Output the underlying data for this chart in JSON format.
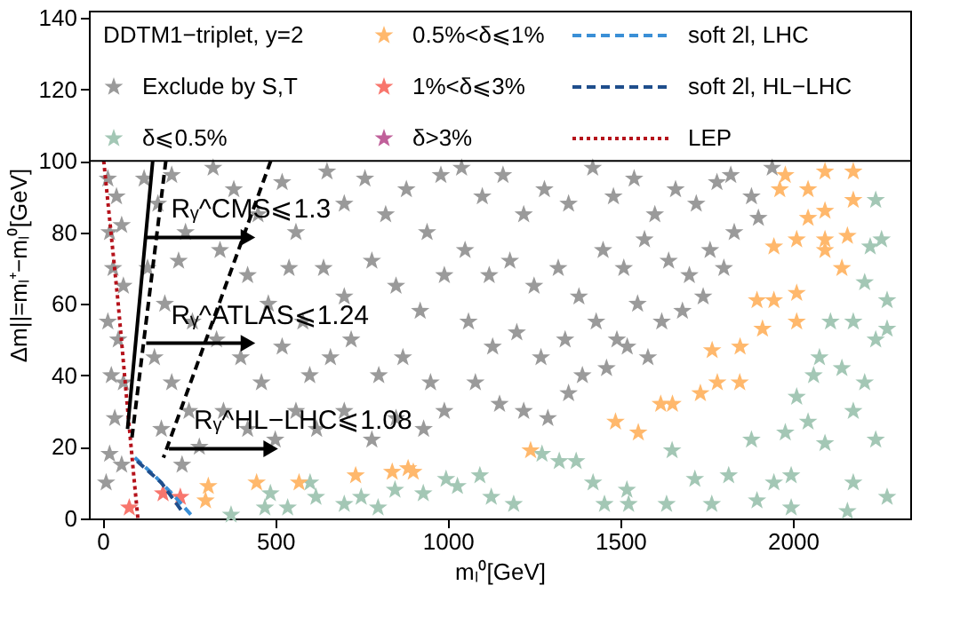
{
  "chart_data": {
    "type": "scatter",
    "legend": "top",
    "ref_lines": [
      {
        "axis": "y",
        "value": 100,
        "color": "#000000"
      }
    ],
    "legend_title": "DDTM1−triplet, y=2",
    "grid": false,
    "xlabel": "mₗ⁰[GeV]",
    "ylabel": "Δm||=mₗ⁺−mₗ⁰[GeV]",
    "xlim": [
      -40,
      2340
    ],
    "ylim": [
      0,
      142
    ],
    "xticks": [
      0,
      500,
      1000,
      1500,
      2000
    ],
    "yticks": [
      0,
      20,
      40,
      60,
      80,
      100,
      120,
      140
    ],
    "series": [
      {
        "name": "Exclude by S,T",
        "marker": "star",
        "color": "#9a9a9a",
        "x": [
          15,
          40,
          20,
          55,
          30,
          60,
          15,
          45,
          25,
          60,
          35,
          20,
          55,
          10,
          120,
          160,
          200,
          240,
          130,
          180,
          220,
          260,
          150,
          200,
          250,
          170,
          280,
          230,
          320,
          380,
          450,
          520,
          560,
          340,
          420,
          480,
          540,
          330,
          400,
          460,
          520,
          580,
          350,
          420,
          500,
          560,
          600,
          650,
          700,
          760,
          820,
          880,
          940,
          980,
          640,
          700,
          780,
          850,
          920,
          990,
          660,
          720,
          800,
          870,
          950,
          620,
          700,
          780,
          850,
          930,
          990,
          1040,
          1100,
          1160,
          1220,
          1280,
          1350,
          1050,
          1120,
          1180,
          1250,
          1320,
          1380,
          1060,
          1130,
          1200,
          1270,
          1340,
          1390,
          1080,
          1150,
          1220,
          1290,
          1350,
          1420,
          1480,
          1540,
          1600,
          1660,
          1720,
          1780,
          1450,
          1510,
          1570,
          1640,
          1700,
          1760,
          1430,
          1490,
          1550,
          1620,
          1680,
          1740,
          1460,
          1520,
          1580,
          1820,
          1880,
          1940,
          1830,
          1900,
          1800
        ],
        "values": [
          95,
          90,
          80,
          82,
          70,
          65,
          55,
          50,
          40,
          38,
          28,
          18,
          15,
          10,
          95,
          88,
          96,
          80,
          70,
          60,
          72,
          55,
          45,
          38,
          30,
          25,
          20,
          15,
          98,
          92,
          85,
          94,
          80,
          75,
          68,
          60,
          70,
          50,
          45,
          38,
          48,
          55,
          30,
          25,
          22,
          30,
          40,
          97,
          88,
          95,
          85,
          92,
          80,
          96,
          70,
          62,
          72,
          65,
          58,
          68,
          45,
          50,
          40,
          45,
          38,
          25,
          30,
          22,
          28,
          25,
          30,
          98,
          90,
          96,
          85,
          92,
          88,
          75,
          68,
          72,
          65,
          70,
          62,
          55,
          48,
          52,
          45,
          50,
          40,
          38,
          32,
          30,
          28,
          35,
          98,
          90,
          95,
          85,
          92,
          88,
          94,
          75,
          70,
          78,
          72,
          68,
          75,
          55,
          50,
          60,
          55,
          58,
          62,
          42,
          48,
          45,
          96,
          90,
          98,
          80,
          84,
          70
        ]
      },
      {
        "name": "δ⩽0.5%",
        "marker": "star",
        "color": "#a3c7b5",
        "x": [
          1093,
          1323,
          1372,
          1191,
          1421,
          1519,
          1650,
          1716,
          1765,
          1814,
          1880,
          1945,
          1995,
          2011,
          2044,
          2077,
          2109,
          2175,
          2240,
          2273,
          2224,
          2257,
          2240,
          2142,
          2208,
          2175,
          2240,
          2175,
          2273,
          2158,
          1995,
          1896,
          1634,
          1454,
          1273,
          1126,
          1028,
          2208,
          2273,
          2093,
          1978,
          2060,
          372,
          470,
          536,
          618,
          700,
          798,
          847,
          929,
          995,
          749,
          601,
          486,
          1524
        ],
        "values": [
          12,
          16,
          16,
          4,
          10,
          8,
          19,
          11,
          4,
          12,
          22,
          10,
          12,
          34,
          27,
          45,
          55,
          55,
          50,
          53,
          76,
          78,
          89,
          42,
          38,
          30,
          22,
          10,
          6,
          2,
          3,
          5,
          4,
          4,
          18,
          6,
          9,
          66,
          61,
          21,
          24,
          40,
          1,
          3,
          3,
          6,
          4,
          3,
          8,
          7,
          11,
          6,
          10,
          7,
          4
        ]
      },
      {
        "name": "0.5%<δ⩽1%",
        "marker": "star",
        "color": "#ffb86c",
        "x": [
          306,
          298,
          446,
          569,
          733,
          839,
          885,
          900,
          1240,
          1486,
          1552,
          1617,
          1651,
          1732,
          1781,
          1846,
          1847,
          1766,
          1912,
          1896,
          1945,
          2011,
          2011,
          1978,
          2093,
          2175,
          2044,
          2093,
          2044,
          2011,
          2093,
          2158,
          2142,
          2093,
          2175,
          1945,
          1962
        ],
        "values": [
          9,
          5,
          10,
          10,
          12,
          13,
          14,
          13,
          19,
          27,
          24,
          32,
          32,
          35,
          38,
          38,
          48,
          47,
          53,
          61,
          61,
          63,
          55,
          96,
          97,
          97,
          92,
          86,
          84,
          78,
          78,
          79,
          70,
          75,
          89,
          76,
          92
        ]
      },
      {
        "name": "1%<δ⩽3%",
        "marker": "star",
        "color": "#f8766d",
        "x": [
          77,
          175,
          225
        ],
        "values": [
          3,
          7,
          6
        ]
      },
      {
        "name": "δ>3%",
        "marker": "star",
        "color": "#c0609a"
      },
      {
        "type": "line",
        "name": "soft 2l, LHC",
        "color": "#3a8fd6",
        "line_style": "dashed",
        "x": [
          93,
          150,
          210,
          256
        ],
        "values": [
          17,
          12,
          6,
          1
        ]
      },
      {
        "type": "line",
        "name": "soft 2l, HL−LHC",
        "color": "#1f4e8c",
        "line_style": "dashed",
        "x": [
          100,
          170,
          230
        ],
        "values": [
          16,
          10,
          2
        ]
      },
      {
        "type": "line",
        "name": "LEP",
        "color": "#b5121b",
        "line_style": "dotted",
        "x": [
          3,
          45,
          69,
          90,
          102
        ],
        "values": [
          100,
          60,
          34,
          12,
          0
        ]
      },
      {
        "type": "line",
        "color": "#000000",
        "line_style": "solid",
        "x": [
          145,
          72
        ],
        "values": [
          100,
          25
        ]
      },
      {
        "type": "line",
        "color": "#000000",
        "line_style": "dashed",
        "x": [
          183,
          84
        ],
        "values": [
          100,
          22
        ]
      },
      {
        "type": "line",
        "color": "#000000",
        "line_style": "dashed",
        "x": [
          487,
          176
        ],
        "values": [
          100,
          17
        ]
      },
      {
        "type": "line",
        "color": "#000000",
        "line_style": "solid",
        "marker": "triangle",
        "x": [
          126,
          421
        ],
        "values": [
          78.6,
          78.6
        ]
      },
      {
        "type": "line",
        "color": "#000000",
        "line_style": "solid",
        "marker": "triangle",
        "x": [
          126,
          421
        ],
        "values": [
          49,
          49
        ]
      },
      {
        "type": "line",
        "color": "#000000",
        "line_style": "solid",
        "marker": "triangle",
        "x": [
          192,
          487
        ],
        "values": [
          19.5,
          19.5
        ]
      }
    ],
    "annotations": [
      "Rᵧ^CMS⩽1.3",
      "Rᵧ^ATLAS⩽1.24",
      "Rᵧ^HL−LHC⩽1.08"
    ]
  }
}
